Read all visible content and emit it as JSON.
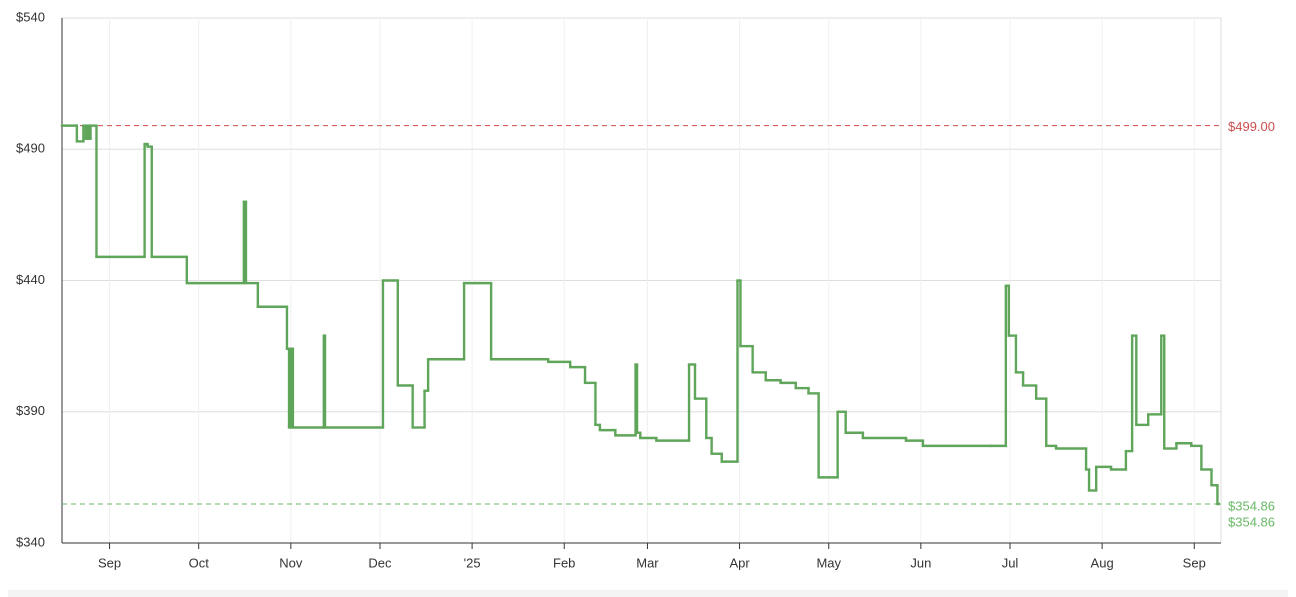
{
  "chart_data": {
    "type": "line",
    "step": "after",
    "color": "#5fa55a",
    "x": [
      0,
      5,
      7.2,
      8,
      8.6,
      9.3,
      9.6,
      11.6,
      27.8,
      28.8,
      30.2,
      42,
      61.2,
      61.9,
      65.9,
      75.7,
      76.4,
      77,
      77.7,
      88.1,
      88.5,
      108,
      113,
      118,
      122,
      123.2,
      135.3,
      144.4,
      163.6,
      171,
      176,
      179.5,
      181,
      186.2,
      193,
      193.5,
      194.6,
      200,
      211,
      213,
      216.8,
      218.6,
      222,
      227.3,
      228.3,
      232.4,
      236.8,
      241.8,
      246.9,
      251.2,
      254.6,
      261,
      263.7,
      269.5,
      284,
      289.7,
      312.6,
      317.6,
      318.6,
      321,
      323.4,
      327.8,
      331.2,
      334.5,
      344.6,
      345.6,
      348,
      353,
      358,
      360.1,
      361.5,
      365.5,
      369.9,
      370.9,
      375,
      380,
      383.4,
      386.8,
      388.8
    ],
    "values": [
      499,
      493,
      499,
      494,
      499,
      494,
      499,
      449,
      492,
      491,
      449,
      439,
      470,
      439,
      430,
      414,
      384,
      414,
      384,
      419,
      384,
      440,
      400,
      384,
      398,
      410,
      439,
      410,
      409,
      407,
      401,
      385,
      383,
      381,
      408,
      382,
      380,
      379,
      408,
      395,
      380,
      374,
      371,
      440,
      415,
      405,
      402,
      401,
      399,
      397,
      365,
      390,
      382,
      380,
      379,
      377,
      377,
      438,
      419,
      405,
      400,
      395,
      377,
      376,
      368,
      360,
      369,
      368,
      375,
      419,
      385,
      389,
      419,
      376,
      378,
      377,
      368,
      362,
      354.86
    ],
    "xlim": [
      0,
      390
    ],
    "xticks": [
      {
        "value": 16,
        "label": "Sep"
      },
      {
        "value": 46,
        "label": "Oct"
      },
      {
        "value": 77,
        "label": "Nov"
      },
      {
        "value": 107,
        "label": "Dec"
      },
      {
        "value": 138,
        "label": "'25"
      },
      {
        "value": 169,
        "label": "Feb"
      },
      {
        "value": 197,
        "label": "Mar"
      },
      {
        "value": 228,
        "label": "Apr"
      },
      {
        "value": 258,
        "label": "May"
      },
      {
        "value": 289,
        "label": "Jun"
      },
      {
        "value": 319,
        "label": "Jul"
      },
      {
        "value": 350,
        "label": "Aug"
      },
      {
        "value": 381,
        "label": "Sep"
      }
    ],
    "ylim": [
      340,
      540
    ],
    "yticks": [
      {
        "value": 340,
        "label": "$340"
      },
      {
        "value": 390,
        "label": "$390"
      },
      {
        "value": 440,
        "label": "$440"
      },
      {
        "value": 490,
        "label": "$490"
      },
      {
        "value": 540,
        "label": "$540"
      }
    ],
    "grid": true,
    "reference_lines": [
      {
        "value": 499,
        "label": "$499.00",
        "color": "#cc4e4e"
      },
      {
        "value": 354.86,
        "label": "$354.86",
        "color": "#6ab866"
      }
    ],
    "last_value_label": "$354.86"
  }
}
